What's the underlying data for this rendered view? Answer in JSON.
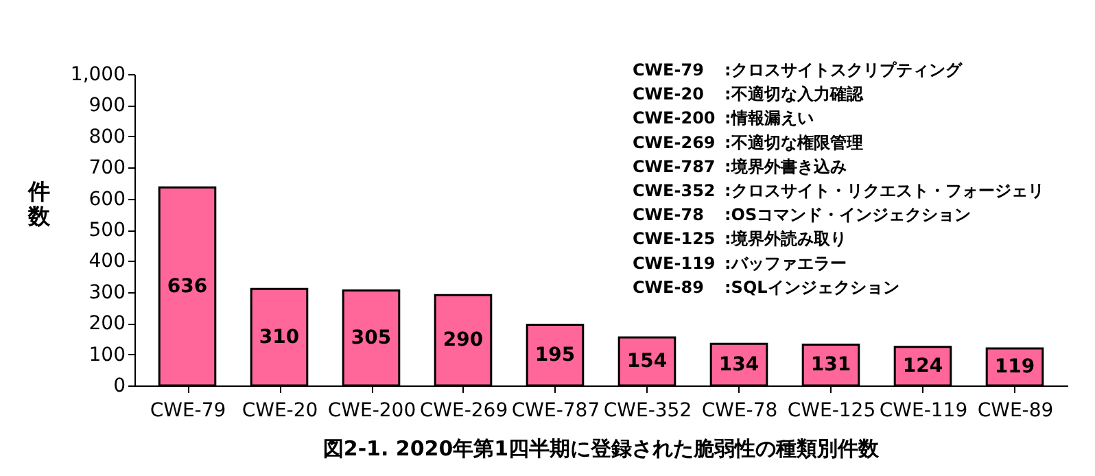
{
  "chart_data": {
    "type": "bar",
    "title": "図2-1. 2020年第1四半期に登録された脆弱性の種類別件数",
    "ylabel": "件数",
    "categories": [
      "CWE-79",
      "CWE-20",
      "CWE-200",
      "CWE-269",
      "CWE-787",
      "CWE-352",
      "CWE-78",
      "CWE-125",
      "CWE-119",
      "CWE-89"
    ],
    "values": [
      636,
      310,
      305,
      290,
      195,
      154,
      134,
      131,
      124,
      119
    ],
    "color": "#ff6699",
    "ylim": [
      0,
      1000
    ],
    "yticks": [
      0,
      100,
      200,
      300,
      400,
      500,
      600,
      700,
      800,
      900,
      {
        "value": 1000,
        "label": "1,000"
      }
    ],
    "grid": false,
    "data_labels": true,
    "annotations": [
      "CWE-79 :クロスサイトスクリプティング",
      "CWE-20 :不適切な入力確認",
      "CWE-200 :情報漏えい",
      "CWE-269 :不適切な権限管理",
      "CWE-787 :境界外書き込み",
      "CWE-352 :クロスサイト・リクエスト・フォージェリ",
      "CWE-78 :OSコマンド・インジェクション",
      "CWE-125 :境界外読み取り",
      "CWE-119 :バッファエラー",
      "CWE-89 :SQLインジェクション"
    ]
  }
}
